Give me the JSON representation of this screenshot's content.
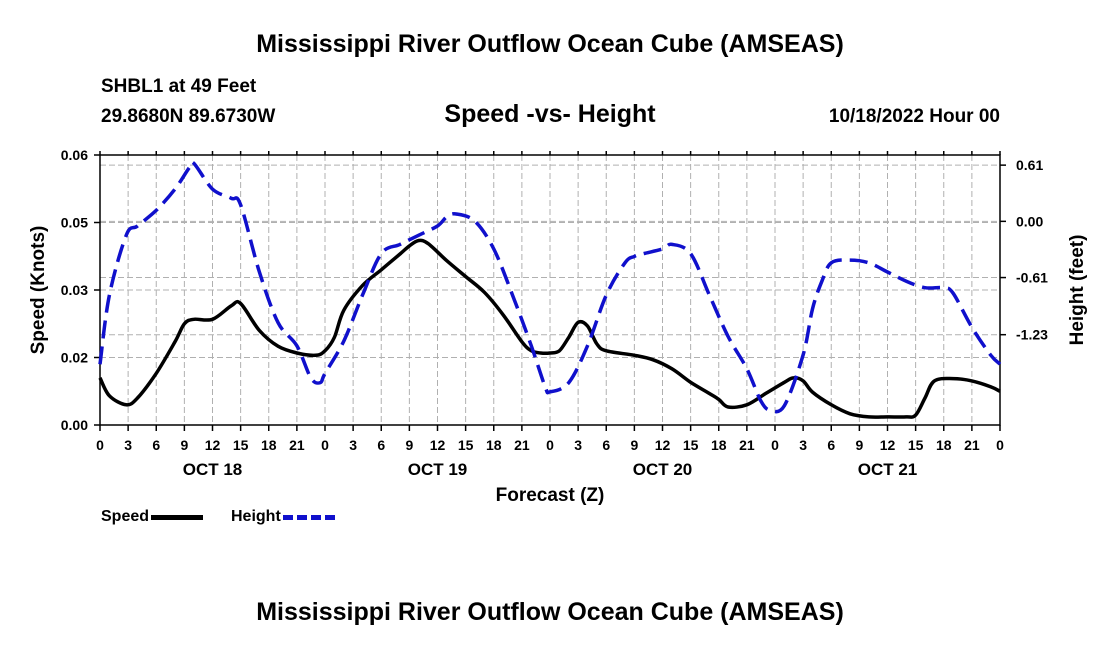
{
  "titles": {
    "main": "Mississippi River Outflow Ocean Cube (AMSEAS)",
    "bottom": "Mississippi River Outflow Ocean Cube (AMSEAS)",
    "station": "SHBL1 at 49 Feet",
    "coords": "29.8680N  89.6730W",
    "plot": "Speed -vs- Height",
    "run_time": "10/18/2022 Hour 00"
  },
  "legend": {
    "speed_label": "Speed",
    "height_label": "Height"
  },
  "colors": {
    "speed": "#000000",
    "height": "#1010cc",
    "grid": "#b0b0b0"
  },
  "chart_data": {
    "type": "line",
    "title": "Speed -vs- Height",
    "xlabel": "Forecast (Z)",
    "ylabel": "Speed (Knots)",
    "y2label": "Height (feet)",
    "x_hours_range": [
      0,
      96
    ],
    "ylim": [
      0,
      0.06
    ],
    "y2lim": [
      -2.21,
      0.72
    ],
    "y_ticks": [
      "0.00",
      "0.02",
      "0.03",
      "0.05",
      "0.06"
    ],
    "y_tick_values": [
      0,
      0.015,
      0.03,
      0.045,
      0.06
    ],
    "y2_ticks": [
      "0.61",
      "0.00",
      "-0.61",
      "-1.23"
    ],
    "y2_tick_values": [
      0.61,
      0.0,
      -0.61,
      -1.23
    ],
    "x_tick_labels": [
      "0",
      "3",
      "6",
      "9",
      "12",
      "15",
      "18",
      "21",
      "0",
      "3",
      "6",
      "9",
      "12",
      "15",
      "18",
      "21",
      "0",
      "3",
      "6",
      "9",
      "12",
      "15",
      "18",
      "21",
      "0",
      "3",
      "6",
      "9",
      "12",
      "15",
      "18",
      "21",
      "0"
    ],
    "day_labels": [
      {
        "hour": 12,
        "label": "OCT 18"
      },
      {
        "hour": 36,
        "label": "OCT 19"
      },
      {
        "hour": 60,
        "label": "OCT 20"
      },
      {
        "hour": 84,
        "label": "OCT 21"
      }
    ],
    "series": [
      {
        "name": "Speed",
        "axis": "left",
        "style": "solid",
        "x": [
          0,
          1,
          2.8,
          4,
          6,
          8,
          9,
          10,
          12,
          14,
          15,
          17,
          19,
          21,
          23,
          24,
          25,
          26,
          28,
          30,
          32,
          33,
          34,
          35,
          37,
          39,
          41,
          43,
          45,
          46,
          47,
          48,
          49,
          50,
          51,
          52,
          53,
          54,
          57,
          59,
          61,
          63,
          65,
          66,
          67,
          69,
          71,
          73,
          74,
          75,
          76,
          78,
          80,
          82,
          84,
          86,
          87,
          88,
          89,
          91,
          93,
          95,
          96
        ],
        "values": [
          0.0105,
          0.0065,
          0.0045,
          0.006,
          0.0115,
          0.0185,
          0.0225,
          0.0235,
          0.0235,
          0.0265,
          0.027,
          0.021,
          0.0175,
          0.016,
          0.0155,
          0.0165,
          0.0195,
          0.0255,
          0.031,
          0.0345,
          0.038,
          0.0398,
          0.041,
          0.0403,
          0.0365,
          0.033,
          0.0295,
          0.0245,
          0.0185,
          0.0165,
          0.016,
          0.016,
          0.0165,
          0.0195,
          0.0228,
          0.022,
          0.018,
          0.0165,
          0.0155,
          0.0145,
          0.0125,
          0.0095,
          0.007,
          0.0057,
          0.004,
          0.0045,
          0.007,
          0.0095,
          0.0105,
          0.0098,
          0.0073,
          0.0045,
          0.0025,
          0.0018,
          0.0018,
          0.0018,
          0.0022,
          0.006,
          0.0098,
          0.0103,
          0.0098,
          0.0085,
          0.0075
        ]
      },
      {
        "name": "Height",
        "axis": "right",
        "style": "dashed",
        "x": [
          0,
          1,
          2.8,
          4,
          6,
          8,
          9.5,
          10,
          12,
          14,
          15,
          17,
          19,
          21,
          22.5,
          23.5,
          24,
          26,
          28,
          30,
          32,
          34,
          36,
          37,
          38,
          40,
          42,
          44,
          46,
          47.5,
          48,
          50,
          52,
          54,
          56,
          57,
          58,
          60,
          61,
          63,
          65,
          67,
          69,
          70.5,
          71.5,
          73,
          75,
          76,
          77,
          78,
          80,
          82,
          84,
          86,
          88,
          90,
          91,
          93,
          95,
          96
        ],
        "values": [
          -1.55,
          -0.8,
          -0.15,
          -0.05,
          0.12,
          0.35,
          0.58,
          0.63,
          0.35,
          0.25,
          0.18,
          -0.55,
          -1.1,
          -1.35,
          -1.7,
          -1.75,
          -1.65,
          -1.3,
          -0.8,
          -0.35,
          -0.25,
          -0.15,
          -0.05,
          0.05,
          0.08,
          0.0,
          -0.3,
          -0.8,
          -1.35,
          -1.8,
          -1.85,
          -1.75,
          -1.35,
          -0.8,
          -0.45,
          -0.38,
          -0.35,
          -0.3,
          -0.25,
          -0.35,
          -0.8,
          -1.25,
          -1.6,
          -1.95,
          -2.05,
          -2.0,
          -1.45,
          -0.95,
          -0.65,
          -0.45,
          -0.42,
          -0.45,
          -0.55,
          -0.65,
          -0.72,
          -0.72,
          -0.78,
          -1.15,
          -1.45,
          -1.55
        ]
      }
    ]
  }
}
